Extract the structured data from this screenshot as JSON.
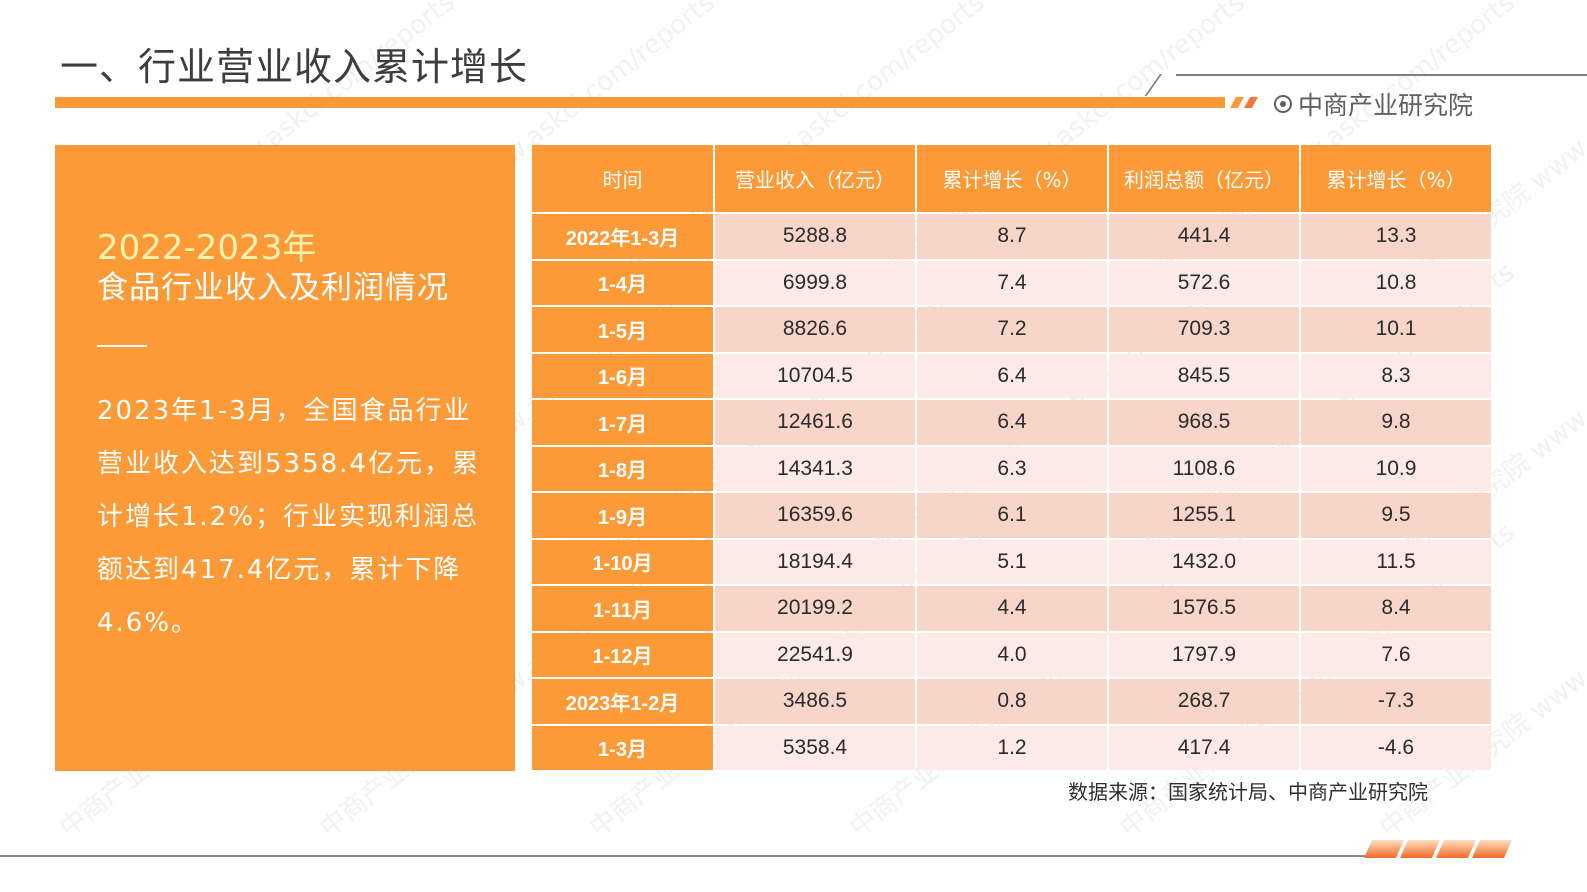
{
  "header": {
    "title": "一、行业营业收入累计增长",
    "brand": "中商产业研究院",
    "brand_icon": "target-circle-icon"
  },
  "panel": {
    "year_range": "2022-2023年",
    "heading": "食品行业收入及利润情况",
    "body": "2023年1-3月，全国食品行业营业收入达到5358.4亿元，累计增长1.2%；行业实现利润总额达到417.4亿元，累计下降4.6%。"
  },
  "table": {
    "headers": [
      "时间",
      "营业收入（亿元）",
      "累计增长（%）",
      "利润总额（亿元）",
      "累计增长（%）"
    ],
    "rows": [
      [
        "2022年1-3月",
        "5288.8",
        "8.7",
        "441.4",
        "13.3"
      ],
      [
        "1-4月",
        "6999.8",
        "7.4",
        "572.6",
        "10.8"
      ],
      [
        "1-5月",
        "8826.6",
        "7.2",
        "709.3",
        "10.1"
      ],
      [
        "1-6月",
        "10704.5",
        "6.4",
        "845.5",
        "8.3"
      ],
      [
        "1-7月",
        "12461.6",
        "6.4",
        "968.5",
        "9.8"
      ],
      [
        "1-8月",
        "14341.3",
        "6.3",
        "1108.6",
        "10.9"
      ],
      [
        "1-9月",
        "16359.6",
        "6.1",
        "1255.1",
        "9.5"
      ],
      [
        "1-10月",
        "18194.4",
        "5.1",
        "1432.0",
        "11.5"
      ],
      [
        "1-11月",
        "20199.2",
        "4.4",
        "1576.5",
        "8.4"
      ],
      [
        "1-12月",
        "22541.9",
        "4.0",
        "1797.9",
        "7.6"
      ],
      [
        "2023年1-2月",
        "3486.5",
        "0.8",
        "268.7",
        "-7.3"
      ],
      [
        "1-3月",
        "5358.4",
        "1.2",
        "417.4",
        "-4.6"
      ]
    ]
  },
  "source": "数据来源：国家统计局、中商产业研究院",
  "watermark": "中商产业研究院 www.askci.com/reports",
  "colors": {
    "accent_orange": "#fb9a37",
    "row_dark": "#f7d5c9",
    "row_light": "#fbeae5",
    "panel_year_text": "#fff3b0"
  }
}
